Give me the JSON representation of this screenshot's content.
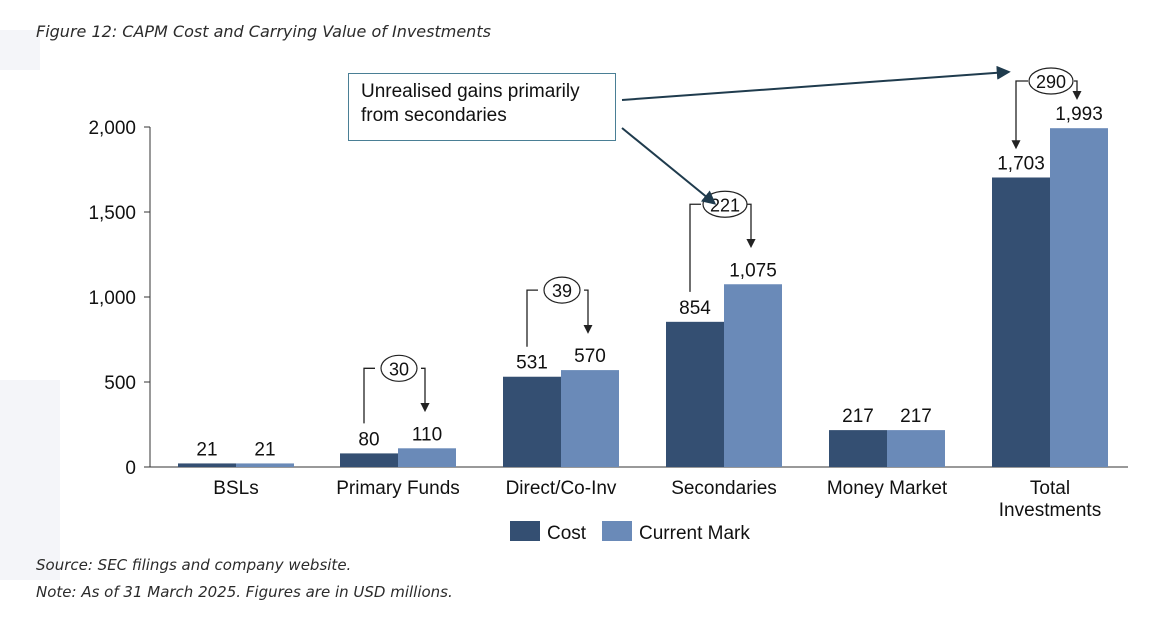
{
  "title": "Figure 12: CAPM Cost and Carrying Value of Investments",
  "footnotes": {
    "source": "Source: SEC filings and company website.",
    "note": "Note: As of 31 March 2025. Figures are in USD millions."
  },
  "annotation": {
    "text_line1": "Unrealised gains primarily",
    "text_line2": "from secondaries"
  },
  "colors": {
    "cost": "#344f72",
    "current_mark": "#6a8ab8",
    "axis": "#333333",
    "arrow": "#1f3b4d"
  },
  "chart_data": {
    "type": "bar",
    "categories": [
      "BSLs",
      "Primary Funds",
      "Direct/Co-Inv",
      "Secondaries",
      "Money Market",
      "Total Investments"
    ],
    "category_lines": [
      [
        "BSLs"
      ],
      [
        "Primary Funds"
      ],
      [
        "Direct/Co-Inv"
      ],
      [
        "Secondaries"
      ],
      [
        "Money Market"
      ],
      [
        "Total",
        "Investments"
      ]
    ],
    "series": [
      {
        "name": "Cost",
        "values": [
          21,
          80,
          531,
          854,
          217,
          1703
        ]
      },
      {
        "name": "Current Mark",
        "values": [
          21,
          110,
          570,
          1075,
          217,
          1993
        ]
      }
    ],
    "value_labels": {
      "Cost": [
        "21",
        "80",
        "531",
        "854",
        "217",
        "1,703"
      ],
      "Current Mark": [
        "21",
        "110",
        "570",
        "1,075",
        "217",
        "1,993"
      ]
    },
    "differences": [
      {
        "category": "Primary Funds",
        "value": "30"
      },
      {
        "category": "Direct/Co-Inv",
        "value": "39"
      },
      {
        "category": "Secondaries",
        "value": "221"
      },
      {
        "category": "Total Investments",
        "value": "290"
      }
    ],
    "yticks": [
      0,
      500,
      1000,
      1500,
      2000
    ],
    "ytick_labels": [
      "0",
      "500",
      "1,000",
      "1,500",
      "2,000"
    ],
    "ylim": [
      0,
      2000
    ],
    "grid": false,
    "legend": "bottom-center"
  }
}
